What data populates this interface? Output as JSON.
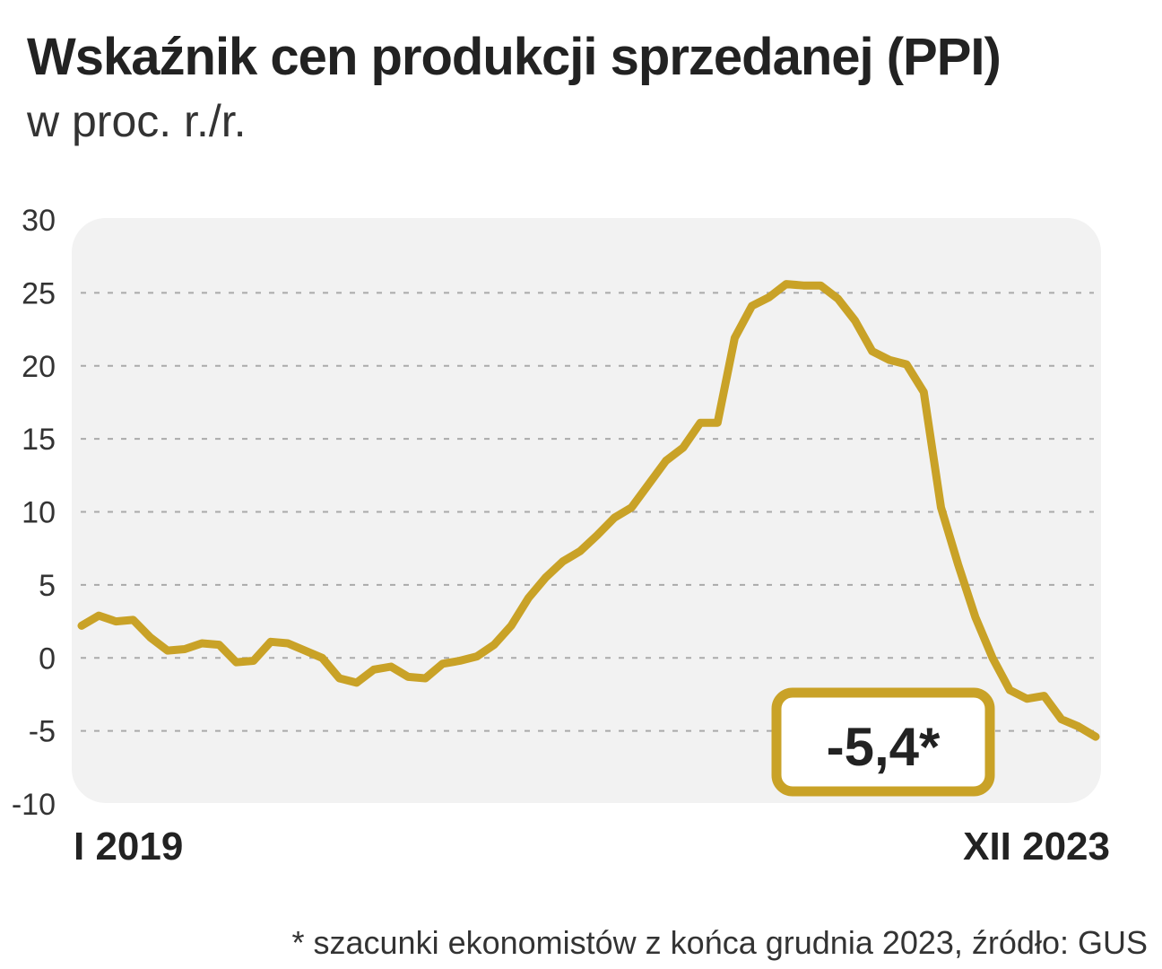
{
  "title": "Wskaźnik cen produkcji sprzedanej (PPI)",
  "subtitle": "w proc. r./r.",
  "footnote": "* szacunki ekonomistów z końca grudnia 2023, źródło: GUS",
  "colors": {
    "line": "#c9a227",
    "plot_bg": "#f2f2f2",
    "grid": "#aaaaaa",
    "text": "#222222"
  },
  "chart_data": {
    "type": "line",
    "title": "Wskaźnik cen produkcji sprzedanej (PPI)",
    "subtitle": "w proc. r./r.",
    "ylim": [
      -10,
      30
    ],
    "yticks": [
      "30",
      "25",
      "20",
      "15",
      "10",
      "5",
      "0",
      "-5",
      "-10"
    ],
    "ytick_values": [
      30,
      25,
      20,
      15,
      10,
      5,
      0,
      -5,
      -10
    ],
    "grid": "horizontal dashed",
    "x_start_label": "I 2019",
    "x_end_label": "XII 2023",
    "values": [
      2.2,
      2.9,
      2.5,
      2.6,
      1.4,
      0.5,
      0.6,
      1.0,
      0.9,
      -0.3,
      -0.2,
      1.1,
      1.0,
      0.5,
      0.0,
      -1.4,
      -1.7,
      -0.8,
      -0.6,
      -1.3,
      -1.4,
      -0.4,
      -0.2,
      0.1,
      0.9,
      2.2,
      4.1,
      5.5,
      6.6,
      7.3,
      8.4,
      9.6,
      10.3,
      11.9,
      13.5,
      14.4,
      16.1,
      16.1,
      21.9,
      24.1,
      24.7,
      25.6,
      25.5,
      25.5,
      24.6,
      23.1,
      21.0,
      20.4,
      20.1,
      18.2,
      10.3,
      6.4,
      2.8,
      0.0,
      -2.2,
      -2.8,
      -2.6,
      -4.2,
      -4.7,
      -5.4
    ],
    "annotation": {
      "text": "-5,4*",
      "value": -5.4,
      "position": "bottom-right"
    }
  }
}
